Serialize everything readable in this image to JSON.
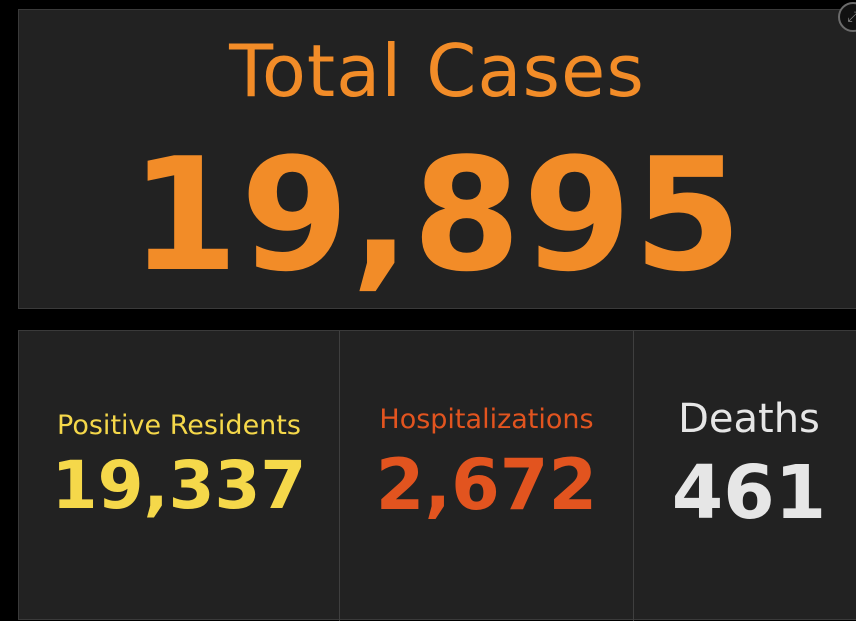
{
  "total_cases": {
    "title": "Total Cases",
    "value": "19,895"
  },
  "expand_icon": "expand-icon",
  "stats": {
    "positive_residents": {
      "label": "Positive Residents",
      "value": "19,337",
      "color": "#f5d84a"
    },
    "hospitalizations": {
      "label": "Hospitalizations",
      "value": "2,672",
      "color": "#e2541f"
    },
    "deaths": {
      "label": "Deaths",
      "value": "461",
      "color": "#e6e6e6"
    }
  },
  "colors": {
    "accent": "#f28c28",
    "panel_background": "#222222",
    "page_background": "#000000"
  }
}
